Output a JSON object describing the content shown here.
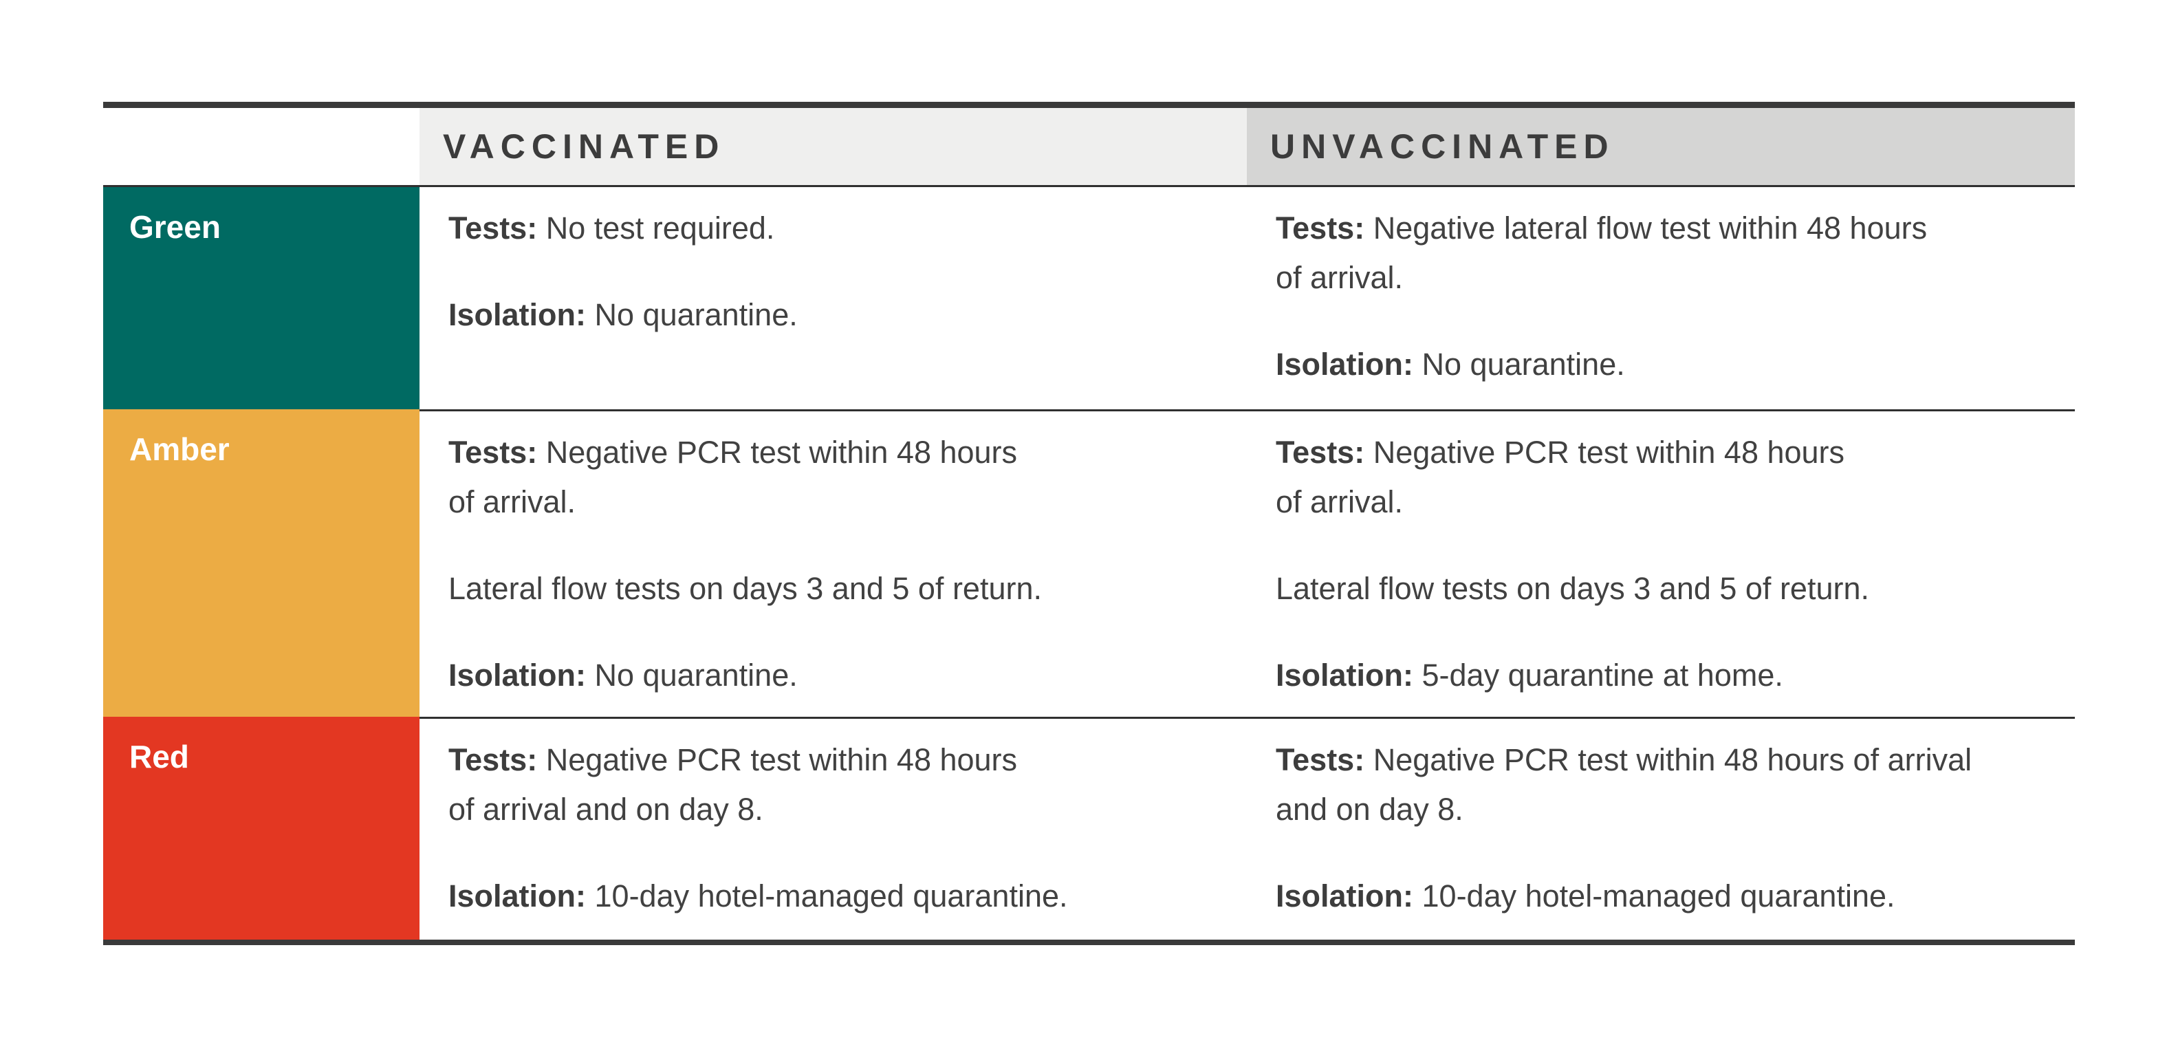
{
  "table": {
    "title_semantics": "travel-traffic-light-rules",
    "colors": {
      "border_thick": "#3A3A3A",
      "border_thin": "#303030",
      "header_vaccinated_bg": "#EFEFEE",
      "header_unvaccinated_bg": "#D5D5D4",
      "header_text": "#3C3C3C",
      "body_text": "#414141",
      "label_text": "#FFFFFF"
    },
    "header": {
      "vaccinated": "VACCINATED",
      "unvaccinated": "UNVACCINATED"
    },
    "rows": [
      {
        "label": "Green",
        "color": "#006A62",
        "vaccinated": [
          {
            "bold": "Tests:",
            "lines": [
              "No test required."
            ]
          },
          {
            "bold": "Isolation:",
            "lines": [
              "No quarantine."
            ]
          }
        ],
        "unvaccinated": [
          {
            "bold": "Tests:",
            "lines": [
              "Negative lateral flow test within 48 hours",
              "of arrival."
            ]
          },
          {
            "bold": "Isolation:",
            "lines": [
              "No quarantine."
            ]
          }
        ]
      },
      {
        "label": "Amber",
        "color": "#ECAC44",
        "vaccinated": [
          {
            "bold": "Tests:",
            "lines": [
              "Negative PCR test within 48 hours",
              "of arrival."
            ]
          },
          {
            "bold": "",
            "lines": [
              "Lateral flow tests on days 3 and 5 of return."
            ]
          },
          {
            "bold": "Isolation:",
            "lines": [
              "No quarantine."
            ]
          }
        ],
        "unvaccinated": [
          {
            "bold": "Tests:",
            "lines": [
              "Negative PCR test within 48 hours",
              "of arrival."
            ]
          },
          {
            "bold": "",
            "lines": [
              "Lateral flow tests on days 3 and 5 of return."
            ]
          },
          {
            "bold": "Isolation:",
            "lines": [
              "5-day quarantine at home."
            ]
          }
        ]
      },
      {
        "label": "Red",
        "color": "#E33722",
        "vaccinated": [
          {
            "bold": "Tests:",
            "lines": [
              "Negative PCR test within 48 hours",
              "of arrival and on day 8."
            ]
          },
          {
            "bold": "Isolation:",
            "lines": [
              "10-day hotel-managed quarantine."
            ]
          }
        ],
        "unvaccinated": [
          {
            "bold": "Tests:",
            "lines": [
              "Negative PCR test within 48 hours of arrival",
              "and on day 8."
            ]
          },
          {
            "bold": "Isolation:",
            "lines": [
              "10-day hotel-managed quarantine."
            ]
          }
        ]
      }
    ]
  }
}
